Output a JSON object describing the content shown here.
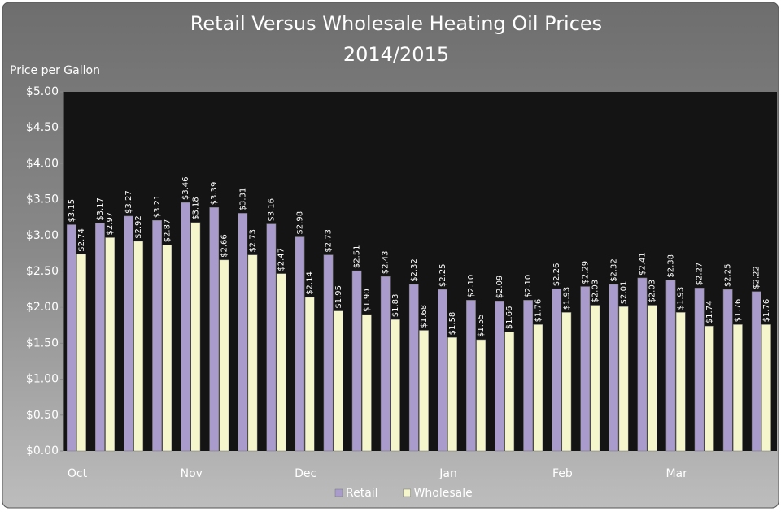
{
  "chart_data": {
    "type": "bar",
    "title": "Retail Versus Wholesale Heating Oil Prices",
    "subtitle": "2014/2015",
    "y_label": "Price per Gallon",
    "categories": [
      "Oct",
      null,
      null,
      null,
      "Nov",
      null,
      null,
      null,
      "Dec",
      null,
      null,
      null,
      null,
      "Jan",
      null,
      null,
      null,
      "Feb",
      null,
      null,
      null,
      "Mar",
      null,
      null,
      null
    ],
    "series": [
      {
        "name": "Retail",
        "color": "#a99bcc",
        "values": [
          3.15,
          3.17,
          3.27,
          3.21,
          3.46,
          3.39,
          3.31,
          3.16,
          2.98,
          2.73,
          2.51,
          2.43,
          2.32,
          2.25,
          2.1,
          2.09,
          2.1,
          2.26,
          2.29,
          2.32,
          2.41,
          2.38,
          2.27,
          2.25,
          2.22
        ],
        "value_labels": [
          "$3.15",
          "$3.17",
          "$3.27",
          "$3.21",
          "$3.46",
          "$3.39",
          "$3.31",
          "$3.16",
          "$2.98",
          "$2.73",
          "$2.51",
          "$2.43",
          "$2.32",
          "$2.25",
          "$2.10",
          "$2.09",
          "$2.10",
          "$2.26",
          "$2.29",
          "$2.32",
          "$2.41",
          "$2.38",
          "$2.27",
          "$2.25",
          "$2.22"
        ]
      },
      {
        "name": "Wholesale",
        "color": "#f6f6cc",
        "values": [
          2.74,
          2.97,
          2.92,
          2.87,
          3.18,
          2.66,
          2.73,
          2.47,
          2.14,
          1.95,
          1.9,
          1.83,
          1.68,
          1.58,
          1.55,
          1.66,
          1.76,
          1.93,
          2.03,
          2.01,
          2.03,
          1.93,
          1.74,
          1.76,
          1.76
        ],
        "value_labels": [
          "$2.74",
          "$2.97",
          "$2.92",
          "$2.87",
          "$3.18",
          "$2.66",
          "$2.73",
          "$2.47",
          "$2.14",
          "$1.95",
          "$1.90",
          "$1.83",
          "$1.68",
          "$1.58",
          "$1.55",
          "$1.66",
          "$1.76",
          "$1.93",
          "$2.03",
          "$2.01",
          "$2.03",
          "$1.93",
          "$1.74",
          "$1.76",
          "$1.76"
        ]
      }
    ],
    "ylim": [
      0,
      5
    ],
    "yticks": [
      {
        "value": 0,
        "label": "$0.00"
      },
      {
        "value": 0.5,
        "label": "$0.50"
      },
      {
        "value": 1,
        "label": "$1.00"
      },
      {
        "value": 1.5,
        "label": "$1.50"
      },
      {
        "value": 2,
        "label": "$2.00"
      },
      {
        "value": 2.5,
        "label": "$2.50"
      },
      {
        "value": 3,
        "label": "$3.00"
      },
      {
        "value": 3.5,
        "label": "$3.50"
      },
      {
        "value": 4,
        "label": "$4.00"
      },
      {
        "value": 4.5,
        "label": "$4.50"
      },
      {
        "value": 5,
        "label": "$5.00"
      }
    ],
    "grid": false,
    "legend": "bottom"
  }
}
